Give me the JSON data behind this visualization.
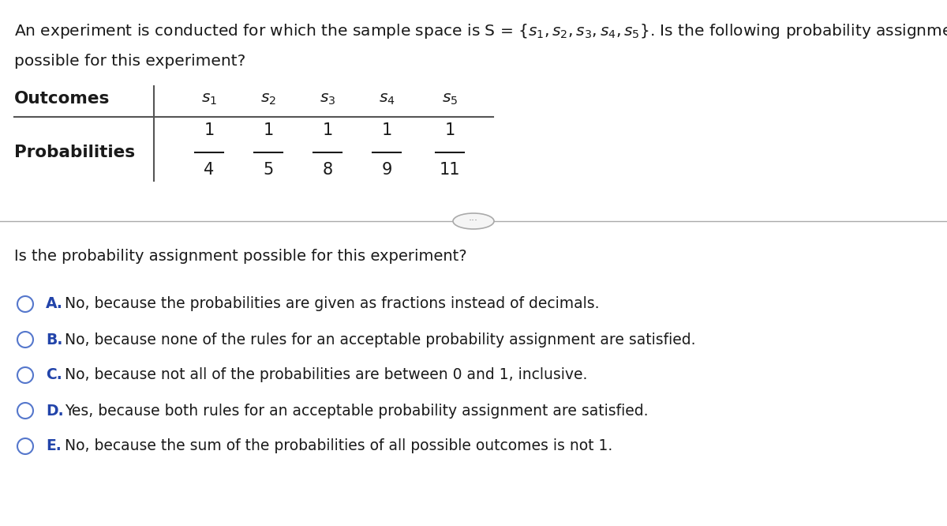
{
  "title_line1_prefix": "An experiment is conducted for which the sample space is S = ",
  "title_set": "{s₁,s₂,s₃,s₄,s₅}",
  "title_line1_suffix": ". Is the following probability assignment",
  "title_line2": "possible for this experiment?",
  "outcomes_label": "Outcomes",
  "probabilities_label": "Probabilities",
  "outcomes": [
    "S₁",
    "S₂",
    "S₃",
    "S₄",
    "S₅"
  ],
  "numerators": [
    "1",
    "1",
    "1",
    "1",
    "1"
  ],
  "denominators": [
    "4",
    "5",
    "8",
    "9",
    "11"
  ],
  "question": "Is the probability assignment possible for this experiment?",
  "options": [
    {
      "letter": "A.",
      "text": "No, because the probabilities are given as fractions instead of decimals."
    },
    {
      "letter": "B.",
      "text": "No, because none of the rules for an acceptable probability assignment are satisfied."
    },
    {
      "letter": "C.",
      "text": "No, because not all of the probabilities are between 0 and 1, inclusive."
    },
    {
      "letter": "D.",
      "text": "Yes, because both rules for an acceptable probability assignment are satisfied."
    },
    {
      "letter": "E.",
      "text": "No, because the sum of the probabilities of all possible outcomes is not 1."
    }
  ],
  "bg_color": "#ffffff",
  "text_color": "#1a1a1a",
  "option_letter_color": "#2244aa",
  "circle_edge_color": "#5577cc",
  "divider_color": "#aaaaaa",
  "dots_color": "#888888",
  "line_color": "#555555"
}
